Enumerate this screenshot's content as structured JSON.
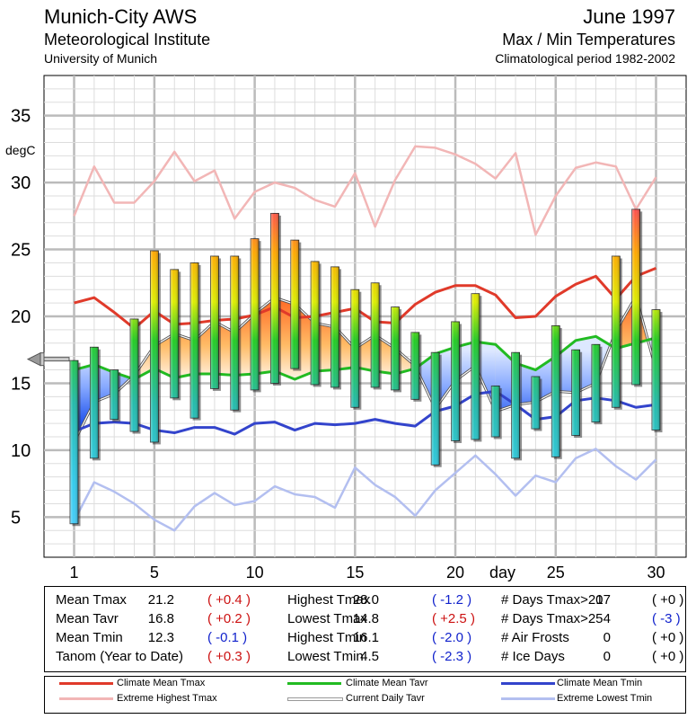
{
  "header": {
    "title_left": "Munich-City AWS",
    "subtitle_left": "Meteorological Institute",
    "subtitle2_left": "University of Munich",
    "title_right": "June 1997",
    "subtitle_right": "Max / Min Temperatures",
    "subtitle2_right": "Climatological period 1982-2002"
  },
  "chart_data": {
    "type": "bar",
    "title": "Max / Min Temperatures",
    "ylabel": "degC",
    "xlabel": "day",
    "xlim": [
      -0.5,
      31.5
    ],
    "ylim": [
      2,
      38
    ],
    "yticks": [
      5,
      10,
      15,
      20,
      25,
      30,
      35
    ],
    "xticks": [
      1,
      5,
      10,
      15,
      20,
      25,
      30
    ],
    "ytick_labels": [
      "5",
      "10",
      "15",
      "20",
      "25",
      "30",
      "35"
    ],
    "xtick_labels": [
      "1",
      "5",
      "10",
      "15",
      "20",
      "25",
      "30"
    ],
    "days": [
      1,
      2,
      3,
      4,
      5,
      6,
      7,
      8,
      9,
      10,
      11,
      12,
      13,
      14,
      15,
      16,
      17,
      18,
      19,
      20,
      21,
      22,
      23,
      24,
      25,
      26,
      27,
      28,
      29,
      30
    ],
    "series": [
      {
        "name": "Tmax",
        "values": [
          16.7,
          17.7,
          16.0,
          19.8,
          24.9,
          23.5,
          24.0,
          24.5,
          24.5,
          25.8,
          27.7,
          25.7,
          24.1,
          23.7,
          22.0,
          22.5,
          20.7,
          18.8,
          17.3,
          19.6,
          21.7,
          14.8,
          17.3,
          15.5,
          19.3,
          17.5,
          17.9,
          24.5,
          28.0,
          20.5
        ]
      },
      {
        "name": "Tmin",
        "values": [
          4.5,
          9.4,
          12.3,
          11.4,
          10.6,
          13.9,
          12.4,
          14.6,
          13.0,
          14.5,
          15.0,
          16.1,
          14.9,
          14.7,
          13.2,
          14.7,
          14.5,
          13.8,
          8.9,
          10.7,
          10.8,
          11.0,
          9.4,
          11.6,
          9.5,
          11.1,
          12.1,
          13.2,
          14.9,
          11.5
        ]
      },
      {
        "name": "Climate Mean Tmax",
        "values": [
          21.0,
          21.4,
          20.3,
          19.1,
          20.4,
          19.4,
          19.5,
          19.7,
          19.8,
          20.1,
          20.7,
          19.9,
          20.0,
          20.3,
          20.6,
          19.6,
          19.5,
          20.9,
          21.8,
          22.3,
          22.3,
          21.6,
          19.9,
          20.0,
          21.5,
          22.4,
          23.0,
          21.3,
          23.0,
          23.6
        ]
      },
      {
        "name": "Climate Mean Tavr",
        "values": [
          16.0,
          16.4,
          15.8,
          15.3,
          16.1,
          15.4,
          15.7,
          15.7,
          15.6,
          15.7,
          15.9,
          15.3,
          15.9,
          16.0,
          16.2,
          15.9,
          15.7,
          16.1,
          17.2,
          17.7,
          18.1,
          17.9,
          16.5,
          16.0,
          17.0,
          18.2,
          18.5,
          17.6,
          18.0,
          18.4
        ]
      },
      {
        "name": "Climate Mean Tmin",
        "values": [
          11.4,
          12.0,
          12.1,
          12.0,
          11.5,
          11.3,
          11.7,
          11.7,
          11.2,
          12.0,
          12.1,
          11.5,
          12.0,
          11.9,
          12.0,
          12.3,
          12.0,
          11.8,
          12.9,
          13.3,
          14.2,
          14.4,
          13.4,
          12.3,
          12.5,
          13.7,
          13.9,
          13.7,
          13.2,
          13.4
        ]
      },
      {
        "name": "Extreme Highest Tmax",
        "values": [
          27.5,
          31.2,
          28.5,
          28.5,
          30.1,
          32.3,
          30.1,
          30.9,
          27.3,
          29.3,
          30.0,
          29.6,
          28.7,
          28.2,
          30.7,
          26.7,
          30.2,
          32.7,
          32.6,
          32.1,
          31.4,
          30.3,
          32.2,
          26.1,
          29.0,
          31.1,
          31.5,
          31.2,
          28.0,
          30.4
        ]
      },
      {
        "name": "Extreme Lowest Tmin",
        "values": [
          4.7,
          7.6,
          6.9,
          6.0,
          4.8,
          4.0,
          5.8,
          6.8,
          5.9,
          6.2,
          7.3,
          6.7,
          6.5,
          5.7,
          8.7,
          7.4,
          6.5,
          5.1,
          7.0,
          8.3,
          9.6,
          8.2,
          6.6,
          8.1,
          7.6,
          9.4,
          10.1,
          8.8,
          7.8,
          9.3
        ]
      },
      {
        "name": "Current Daily Tavr",
        "values": [
          10.6,
          13.6,
          14.2,
          15.6,
          17.8,
          18.7,
          18.2,
          19.6,
          18.8,
          20.2,
          21.4,
          20.9,
          19.5,
          19.2,
          17.6,
          18.6,
          17.6,
          16.3,
          13.1,
          15.2,
          16.3,
          12.9,
          13.4,
          13.6,
          14.4,
          14.3,
          15.0,
          18.9,
          21.5,
          16.0
        ]
      }
    ],
    "current_tavr_marker": 16.8,
    "legend": [
      {
        "label": "Climate Mean Tmax",
        "color": "#e03a2a"
      },
      {
        "label": "Extreme Highest Tmax",
        "color": "#f2b6b6"
      },
      {
        "label": "Climate Mean Tavr",
        "color": "#22bb22"
      },
      {
        "label": "Current Daily Tavr",
        "color": "#999999"
      },
      {
        "label": "Climate Mean Tmin",
        "color": "#3344cc"
      },
      {
        "label": "Extreme Lowest Tmin",
        "color": "#b3bff0"
      }
    ]
  },
  "stats": {
    "col1": [
      {
        "label": "Mean Tmax",
        "value": "21.2",
        "anom": "( +0.4 )",
        "anom_color": "red"
      },
      {
        "label": "Mean Tavr",
        "value": "16.8",
        "anom": "( +0.2 )",
        "anom_color": "red"
      },
      {
        "label": "Mean Tmin",
        "value": "12.3",
        "anom": "( -0.1 )",
        "anom_color": "blue"
      },
      {
        "label": "Tanom (Year to Date)",
        "value": "",
        "anom": "( +0.3 )",
        "anom_color": "red"
      }
    ],
    "col2": [
      {
        "label": "Highest Tmax",
        "value": "28.0",
        "anom": "( -1.2 )",
        "anom_color": "blue"
      },
      {
        "label": "Lowest Tmax",
        "value": "14.8",
        "anom": "( +2.5 )",
        "anom_color": "red"
      },
      {
        "label": "Highest Tmin",
        "value": "16.1",
        "anom": "( -2.0 )",
        "anom_color": "blue"
      },
      {
        "label": "Lowest Tmin",
        "value": "4.5",
        "anom": "( -2.3 )",
        "anom_color": "blue"
      }
    ],
    "col3": [
      {
        "label": "# Days Tmax>20",
        "value": "17",
        "anom": "( +0 )",
        "anom_color": "blk"
      },
      {
        "label": "# Days Tmax>25",
        "value": "4",
        "anom": "( -3 )",
        "anom_color": "blue"
      },
      {
        "label": "# Air Frosts",
        "value": "0",
        "anom": "( +0 )",
        "anom_color": "blk"
      },
      {
        "label": "# Ice Days",
        "value": "0",
        "anom": "( +0 )",
        "anom_color": "blk"
      }
    ]
  }
}
